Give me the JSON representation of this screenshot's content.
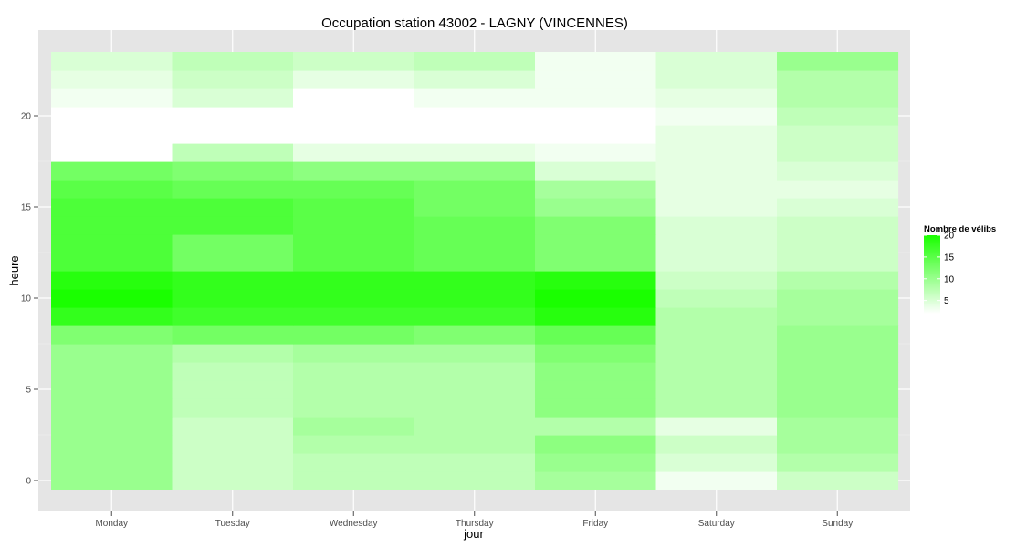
{
  "chart_data": {
    "type": "heatmap",
    "title": "Occupation station 43002 - LAGNY (VINCENNES)",
    "xlabel": "jour",
    "ylabel": "heure",
    "x_categories": [
      "Monday",
      "Tuesday",
      "Wednesday",
      "Thursday",
      "Friday",
      "Saturday",
      "Sunday"
    ],
    "y_values": [
      0,
      1,
      2,
      3,
      4,
      5,
      6,
      7,
      8,
      9,
      10,
      11,
      12,
      13,
      14,
      15,
      16,
      17,
      18,
      19,
      20,
      21,
      22,
      23
    ],
    "y_ticks": [
      0,
      5,
      10,
      15,
      20
    ],
    "ylim": [
      -0.5,
      23.5
    ],
    "grid": true,
    "legend": {
      "title": "Nombre de vélibs",
      "position": "right",
      "ticks": [
        5,
        10,
        15,
        20
      ],
      "range": [
        2,
        20
      ],
      "color_low": "#ffffff",
      "color_high": "#1aff00"
    },
    "values": [
      [
        10,
        6,
        7,
        7,
        9,
        3,
        6
      ],
      [
        10,
        6,
        7,
        7,
        10,
        5,
        8
      ],
      [
        10,
        6,
        8,
        8,
        11,
        6,
        9
      ],
      [
        10,
        6,
        9,
        8,
        8,
        4,
        9
      ],
      [
        10,
        7,
        8,
        8,
        11,
        8,
        10
      ],
      [
        10,
        7,
        8,
        8,
        11,
        8,
        10
      ],
      [
        10,
        7,
        8,
        8,
        11,
        8,
        10
      ],
      [
        10,
        8,
        9,
        9,
        12,
        8,
        10
      ],
      [
        12,
        13,
        13,
        12,
        14,
        8,
        10
      ],
      [
        18,
        17,
        17,
        17,
        19,
        8,
        9
      ],
      [
        20,
        18,
        18,
        18,
        20,
        7,
        9
      ],
      [
        19,
        18,
        18,
        18,
        19,
        6,
        8
      ],
      [
        16,
        13,
        15,
        14,
        12,
        5,
        6
      ],
      [
        16,
        13,
        15,
        14,
        12,
        5,
        6
      ],
      [
        16,
        16,
        15,
        14,
        12,
        5,
        6
      ],
      [
        16,
        16,
        15,
        13,
        10,
        4,
        5
      ],
      [
        15,
        14,
        14,
        13,
        9,
        4,
        4
      ],
      [
        13,
        12,
        11,
        11,
        5,
        4,
        5
      ],
      [
        2,
        7,
        4,
        4,
        3,
        4,
        6
      ],
      [
        0,
        2,
        2,
        2,
        2,
        4,
        6
      ],
      [
        1,
        2,
        1,
        1,
        2,
        3,
        7
      ],
      [
        3,
        5,
        2,
        3,
        3,
        4,
        8
      ],
      [
        4,
        6,
        4,
        5,
        3,
        5,
        8
      ],
      [
        5,
        7,
        6,
        7,
        3,
        5,
        10
      ]
    ]
  }
}
